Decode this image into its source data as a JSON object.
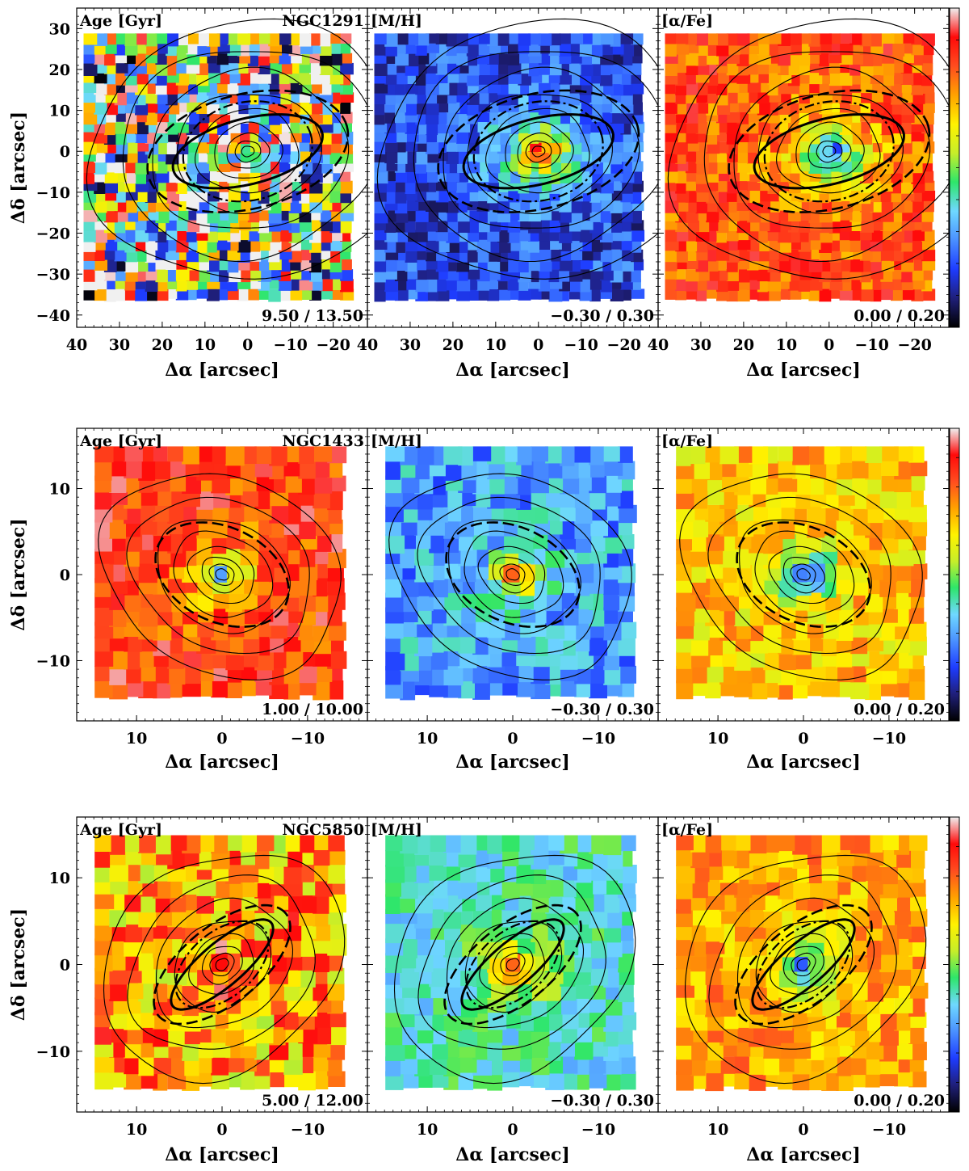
{
  "colormap": {
    "name": "sauron",
    "stops": [
      "#000000",
      "#1f1f7a",
      "#1e3cff",
      "#4a90ff",
      "#6fd8ff",
      "#2ee66a",
      "#c6ee2a",
      "#fff200",
      "#ffa200",
      "#ff4d1f",
      "#ff0a0a",
      "#f0f0f0"
    ]
  },
  "axis_labels": {
    "x": "Δα [arcsec]",
    "y": "Δδ [arcsec]"
  },
  "chart_data": [
    {
      "type": "heatmap",
      "galaxy": "NGC1291",
      "x_ticks": [
        40,
        30,
        20,
        10,
        0,
        -10,
        -20
      ],
      "x_tick_labels": [
        "40",
        "30",
        "20",
        "10",
        "0",
        "−10",
        "−20"
      ],
      "y_ticks": [
        30,
        20,
        10,
        0,
        -10,
        -20,
        -30,
        -40
      ],
      "y_tick_labels": [
        "30",
        "20",
        "10",
        "0",
        "−10",
        "−20",
        "−30",
        "−40"
      ],
      "xlim": [
        40,
        -28
      ],
      "ylim": [
        -43,
        35
      ],
      "map_extent": {
        "x": [
          37,
          -24
        ],
        "y": [
          -36,
          28
        ]
      },
      "pixel_scale_arcsec": 2.4,
      "panels": [
        {
          "label": "Age [Gyr]",
          "galaxy_label": "NGC1291",
          "range_label": "9.50 / 13.50",
          "cmin": 9.5,
          "cmax": 13.5,
          "center_level": 0.95,
          "outer_level": 0.55,
          "noise": 0.55
        },
        {
          "label": "[M/H]",
          "range_label": "−0.30 / 0.30",
          "cmin": -0.3,
          "cmax": 0.3,
          "center_level": 1.0,
          "outer_level": 0.18,
          "noise": 0.12
        },
        {
          "label": "[α/Fe]",
          "range_label": "0.00 / 0.20",
          "cmin": 0.0,
          "cmax": 0.2,
          "center_level": 0.1,
          "outer_level": 0.82,
          "noise": 0.12
        }
      ],
      "contours": {
        "center": [
          0,
          0
        ],
        "axis_ratio": 0.85,
        "position_angle_deg": 10,
        "radii": [
          1.5,
          3,
          5,
          8,
          12,
          17,
          23,
          30,
          37
        ]
      },
      "bar_ellipse": {
        "center": [
          0,
          0
        ],
        "semi_major": 18,
        "semi_minor": 8,
        "position_angle_deg": 15
      },
      "dashed_ellipse": {
        "center": [
          0,
          0
        ],
        "semi_major": 24,
        "semi_minor": 14,
        "position_angle_deg": 15
      }
    },
    {
      "type": "heatmap",
      "galaxy": "NGC1433",
      "x_ticks": [
        10,
        0,
        -10
      ],
      "x_tick_labels": [
        "10",
        "0",
        "−10"
      ],
      "y_ticks": [
        10,
        0,
        -10
      ],
      "y_tick_labels": [
        "10",
        "0",
        "−10"
      ],
      "xlim": [
        17,
        -17
      ],
      "ylim": [
        -17,
        17
      ],
      "map_extent": {
        "x": [
          14,
          -14
        ],
        "y": [
          -14,
          14
        ]
      },
      "pixel_scale_arcsec": 1.7,
      "panels": [
        {
          "label": "Age [Gyr]",
          "galaxy_label": "NGC1433",
          "range_label": "1.00 / 10.00",
          "cmin": 1.0,
          "cmax": 10.0,
          "center_level": 0.2,
          "outer_level": 0.85,
          "noise": 0.12
        },
        {
          "label": "[M/H]",
          "range_label": "−0.30 / 0.30",
          "cmin": -0.3,
          "cmax": 0.3,
          "center_level": 0.88,
          "outer_level": 0.3,
          "noise": 0.12
        },
        {
          "label": "[α/Fe]",
          "range_label": "0.00 / 0.20",
          "cmin": 0.0,
          "cmax": 0.2,
          "center_level": 0.05,
          "outer_level": 0.68,
          "noise": 0.12
        }
      ],
      "contours": {
        "center": [
          0,
          0
        ],
        "axis_ratio": 0.78,
        "position_angle_deg": -25,
        "radii": [
          0.8,
          1.5,
          2.5,
          4,
          6,
          8,
          11,
          14.5
        ]
      },
      "bar_ellipse": null,
      "dashed_ellipse": {
        "center": [
          0,
          0
        ],
        "semi_major": 8.2,
        "semi_minor": 5.5,
        "position_angle_deg": -25
      }
    },
    {
      "type": "heatmap",
      "galaxy": "NGC5850",
      "x_ticks": [
        10,
        0,
        -10
      ],
      "x_tick_labels": [
        "10",
        "0",
        "−10"
      ],
      "y_ticks": [
        10,
        0,
        -10
      ],
      "y_tick_labels": [
        "10",
        "0",
        "−10"
      ],
      "xlim": [
        17,
        -17
      ],
      "ylim": [
        -17,
        17
      ],
      "map_extent": {
        "x": [
          14,
          -14
        ],
        "y": [
          -14,
          14
        ]
      },
      "pixel_scale_arcsec": 1.7,
      "panels": [
        {
          "label": "Age [Gyr]",
          "galaxy_label": "NGC5850",
          "range_label": "5.00 / 12.00",
          "cmin": 5.0,
          "cmax": 12.0,
          "center_level": 0.9,
          "outer_level": 0.72,
          "noise": 0.2
        },
        {
          "label": "[M/H]",
          "range_label": "−0.30 / 0.30",
          "cmin": -0.3,
          "cmax": 0.3,
          "center_level": 0.95,
          "outer_level": 0.4,
          "noise": 0.1
        },
        {
          "label": "[α/Fe]",
          "range_label": "0.00 / 0.20",
          "cmin": 0.0,
          "cmax": 0.2,
          "center_level": 0.15,
          "outer_level": 0.72,
          "noise": 0.1
        }
      ],
      "contours": {
        "center": [
          0,
          0
        ],
        "axis_ratio": 0.8,
        "position_angle_deg": 35,
        "radii": [
          0.8,
          1.5,
          2.5,
          4,
          6,
          8.5,
          11.5,
          15
        ]
      },
      "bar_ellipse": {
        "center": [
          0,
          0
        ],
        "semi_major": 7.5,
        "semi_minor": 2.5,
        "position_angle_deg": 40
      },
      "dashed_ellipse": {
        "center": [
          0,
          0
        ],
        "semi_major": 9.5,
        "semi_minor": 4.5,
        "position_angle_deg": 38
      }
    }
  ]
}
